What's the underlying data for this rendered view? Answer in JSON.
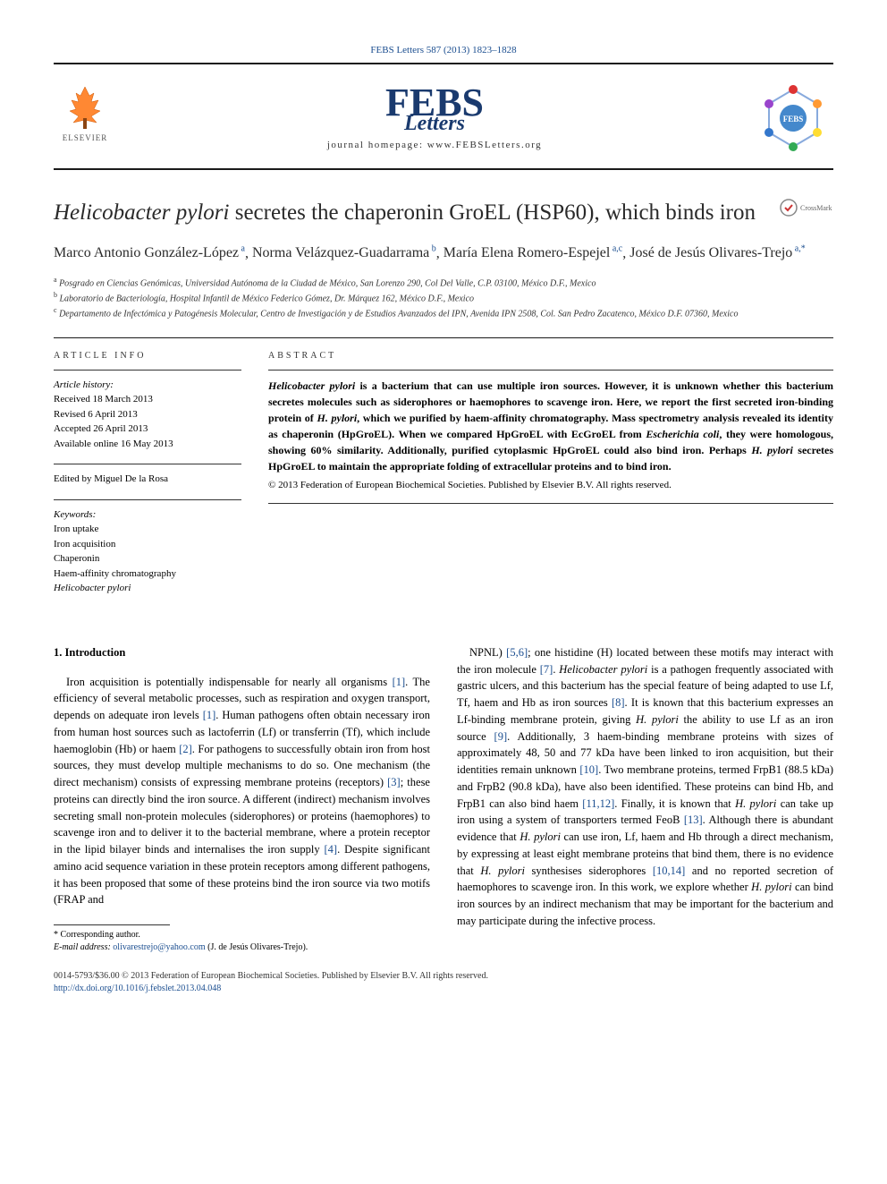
{
  "citation": "FEBS Letters 587 (2013) 1823–1828",
  "publisher_name": "ELSEVIER",
  "journal_logo_main": "FEBS",
  "journal_logo_sub": "Letters",
  "homepage_label": "journal homepage: www.FEBSLetters.org",
  "badge_text": "FEBS",
  "crossmark_label": "CrossMark",
  "title_prefix_italic": "Helicobacter pylori",
  "title_rest": " secretes the chaperonin GroEL (HSP60), which binds iron",
  "authors_html": "Marco Antonio González-López",
  "authors": [
    {
      "name": "Marco Antonio González-López",
      "sup": "a"
    },
    {
      "name": "Norma Velázquez-Guadarrama",
      "sup": "b"
    },
    {
      "name": "María Elena Romero-Espejel",
      "sup": "a,c"
    },
    {
      "name": "José de Jesús Olivares-Trejo",
      "sup": "a,*"
    }
  ],
  "affiliations": [
    {
      "sup": "a",
      "text": "Posgrado en Ciencias Genómicas, Universidad Autónoma de la Ciudad de México, San Lorenzo 290, Col Del Valle, C.P. 03100, México D.F., Mexico"
    },
    {
      "sup": "b",
      "text": "Laboratorio de Bacteriología, Hospital Infantil de México Federico Gómez, Dr. Márquez 162, México D.F., Mexico"
    },
    {
      "sup": "c",
      "text": "Departamento de Infectómica y Patogénesis Molecular, Centro de Investigación y de Estudios Avanzados del IPN, Avenida IPN 2508, Col. San Pedro Zacatenco, México D.F. 07360, Mexico"
    }
  ],
  "article_info_header": "ARTICLE INFO",
  "abstract_header": "ABSTRACT",
  "history_label": "Article history:",
  "history": [
    "Received 18 March 2013",
    "Revised 6 April 2013",
    "Accepted 26 April 2013",
    "Available online 16 May 2013"
  ],
  "edited_by": "Edited by Miguel De la Rosa",
  "keywords_label": "Keywords:",
  "keywords": [
    "Iron uptake",
    "Iron acquisition",
    "Chaperonin",
    "Haem-affinity chromatography",
    "Helicobacter pylori"
  ],
  "abstract_parts": [
    {
      "italic": true,
      "text": "Helicobacter pylori"
    },
    {
      "italic": false,
      "text": " is a bacterium that can use multiple iron sources. However, it is unknown whether this bacterium secretes molecules such as siderophores or haemophores to scavenge iron. Here, we report the first secreted iron-binding protein of "
    },
    {
      "italic": true,
      "text": "H. pylori"
    },
    {
      "italic": false,
      "text": ", which we purified by haem-affinity chromatography. Mass spectrometry analysis revealed its identity as chaperonin (HpGroEL). When we compared HpGroEL with EcGroEL from "
    },
    {
      "italic": true,
      "text": "Escherichia coli"
    },
    {
      "italic": false,
      "text": ", they were homologous, showing 60% similarity. Additionally, purified cytoplasmic HpGroEL could also bind iron. Perhaps "
    },
    {
      "italic": true,
      "text": "H. pylori"
    },
    {
      "italic": false,
      "text": " secretes HpGroEL to maintain the appropriate folding of extracellular proteins and to bind iron."
    }
  ],
  "copyright": "© 2013 Federation of European Biochemical Societies. Published by Elsevier B.V. All rights reserved.",
  "intro_heading": "1. Introduction",
  "col1_text": "Iron acquisition is potentially indispensable for nearly all organisms [1]. The efficiency of several metabolic processes, such as respiration and oxygen transport, depends on adequate iron levels [1]. Human pathogens often obtain necessary iron from human host sources such as lactoferrin (Lf) or transferrin (Tf), which include haemoglobin (Hb) or haem [2]. For pathogens to successfully obtain iron from host sources, they must develop multiple mechanisms to do so. One mechanism (the direct mechanism) consists of expressing membrane proteins (receptors) [3]; these proteins can directly bind the iron source. A different (indirect) mechanism involves secreting small non-protein molecules (siderophores) or proteins (haemophores) to scavenge iron and to deliver it to the bacterial membrane, where a protein receptor in the lipid bilayer binds and internalises the iron supply [4]. Despite significant amino acid sequence variation in these protein receptors among different pathogens, it has been proposed that some of these proteins bind the iron source via two motifs (FRAP and",
  "col2_text": "NPNL) [5,6]; one histidine (H) located between these motifs may interact with the iron molecule [7]. Helicobacter pylori is a pathogen frequently associated with gastric ulcers, and this bacterium has the special feature of being adapted to use Lf, Tf, haem and Hb as iron sources [8]. It is known that this bacterium expresses an Lf-binding membrane protein, giving H. pylori the ability to use Lf as an iron source [9]. Additionally, 3 haem-binding membrane proteins with sizes of approximately 48, 50 and 77 kDa have been linked to iron acquisition, but their identities remain unknown [10]. Two membrane proteins, termed FrpB1 (88.5 kDa) and FrpB2 (90.8 kDa), have also been identified. These proteins can bind Hb, and FrpB1 can also bind haem [11,12]. Finally, it is known that H. pylori can take up iron using a system of transporters termed FeoB [13]. Although there is abundant evidence that H. pylori can use iron, Lf, haem and Hb through a direct mechanism, by expressing at least eight membrane proteins that bind them, there is no evidence that H. pylori synthesises siderophores [10,14] and no reported secretion of haemophores to scavenge iron. In this work, we explore whether H. pylori can bind iron sources by an indirect mechanism that may be important for the bacterium and may participate during the infective process.",
  "corresponding_label": "* Corresponding author.",
  "email_label": "E-mail address:",
  "email": "olivarestrejo@yahoo.com",
  "email_person": "(J. de Jesús Olivares-Trejo).",
  "issn_line": "0014-5793/$36.00 © 2013 Federation of European Biochemical Societies. Published by Elsevier B.V. All rights reserved.",
  "doi_line": "http://dx.doi.org/10.1016/j.febslet.2013.04.048",
  "colors": {
    "link": "#1a4d8f",
    "elsevier_orange": "#ff6600",
    "febs_blue": "#1a3a6e",
    "text": "#000000",
    "rule": "#1a1a1a"
  }
}
